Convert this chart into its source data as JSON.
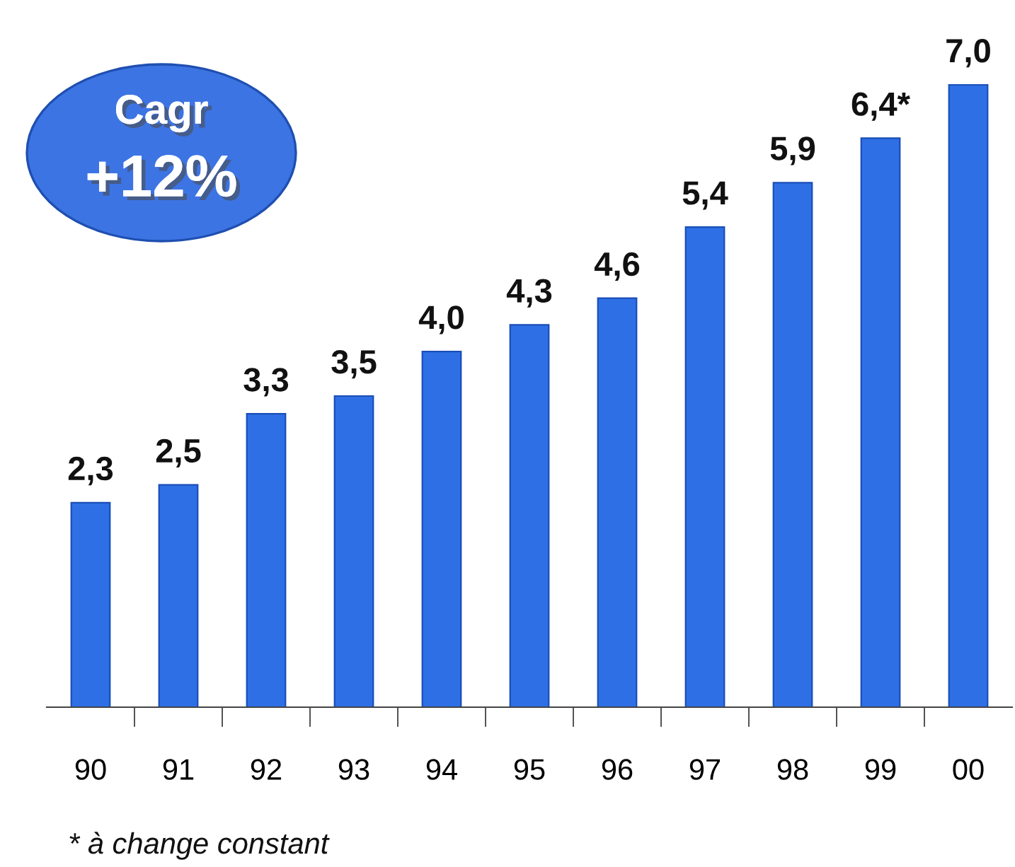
{
  "chart_data": {
    "type": "bar",
    "categories": [
      "90",
      "91",
      "92",
      "93",
      "94",
      "95",
      "96",
      "97",
      "98",
      "99",
      "00"
    ],
    "values": [
      2.3,
      2.5,
      3.3,
      3.5,
      4.0,
      4.3,
      4.6,
      5.4,
      5.9,
      6.4,
      7.0
    ],
    "value_labels": [
      "2,3",
      "2,5",
      "3,3",
      "3,5",
      "4,0",
      "4,3",
      "4,6",
      "5,4",
      "5,9",
      "6,4*",
      "7,0"
    ],
    "color": "#2f6fe6",
    "grid": false,
    "annotations": [
      "Cagr",
      "+12%",
      "* à change constant"
    ]
  }
}
